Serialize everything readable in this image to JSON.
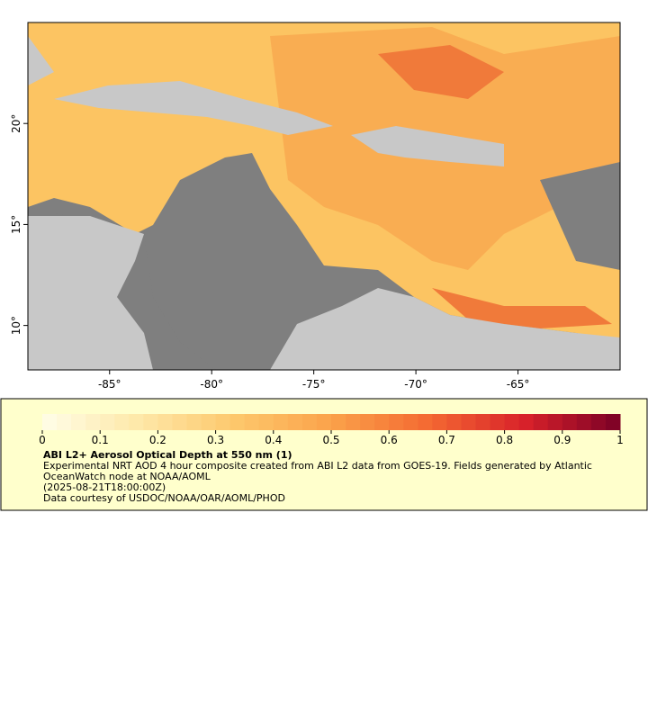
{
  "map": {
    "xlim": [
      -89,
      -60
    ],
    "ylim": [
      7.8,
      25
    ],
    "xticks": [
      {
        "value": -85,
        "label": "-85°"
      },
      {
        "value": -80,
        "label": "-80°"
      },
      {
        "value": -75,
        "label": "-75°"
      },
      {
        "value": -70,
        "label": "-70°"
      },
      {
        "value": -65,
        "label": "-65°"
      }
    ],
    "yticks": [
      {
        "value": 10,
        "label": "10°"
      },
      {
        "value": 15,
        "label": "15°"
      },
      {
        "value": 20,
        "label": "20°"
      }
    ]
  },
  "colorbar": {
    "lim": [
      0,
      1
    ],
    "ticks": [
      0,
      0.1,
      0.2,
      0.3,
      0.4,
      0.5,
      0.6,
      0.7,
      0.8,
      0.9,
      1
    ],
    "colors": [
      "#fffee8",
      "#fee8a8",
      "#fdc86c",
      "#fba24a",
      "#f46a32",
      "#d9222a",
      "#7a0026"
    ]
  },
  "legend": {
    "title": "ABI L2+ Aerosol Optical Depth at 550 nm (1)",
    "description": "Experimental NRT AOD 4 hour composite created from ABI L2 data from GOES-19. Fields generated by Atlantic OceanWatch node at NOAA/AOML",
    "time": "(2025-08-21T18:00:00Z)",
    "credit": "Data courtesy of USDOC/NOAA/OAR/AOML/PHOD"
  }
}
